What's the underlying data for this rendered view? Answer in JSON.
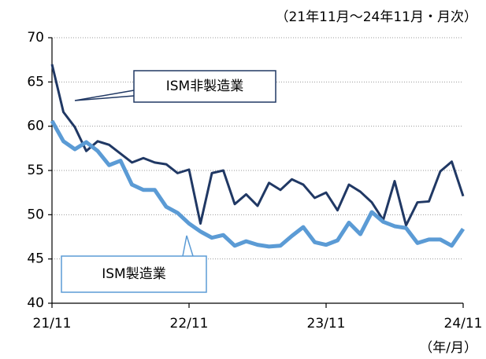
{
  "chart_data": {
    "type": "line",
    "subtitle": "（21年11月～24年11月・月次）",
    "x_unit": "（年/月）",
    "categories": [
      "21/11",
      null,
      null,
      null,
      null,
      null,
      null,
      null,
      null,
      null,
      null,
      null,
      "22/11",
      null,
      null,
      null,
      null,
      null,
      null,
      null,
      null,
      null,
      null,
      null,
      "23/11",
      null,
      null,
      null,
      null,
      null,
      null,
      null,
      null,
      null,
      null,
      null,
      "24/11"
    ],
    "series": [
      {
        "name": "ISM非製造業",
        "color": "#203864",
        "values": [
          67.0,
          61.6,
          59.9,
          57.2,
          58.3,
          57.9,
          56.9,
          55.9,
          56.4,
          55.9,
          55.7,
          54.7,
          55.1,
          49.0,
          54.7,
          55.0,
          51.2,
          52.3,
          51.0,
          53.6,
          52.8,
          54.0,
          53.4,
          51.9,
          52.5,
          50.5,
          53.4,
          52.6,
          51.4,
          49.4,
          53.8,
          48.8,
          51.4,
          51.5,
          54.9,
          56.0,
          52.1
        ]
      },
      {
        "name": "ISM製造業",
        "color": "#5b9bd5",
        "values": [
          60.6,
          58.3,
          57.4,
          58.2,
          57.2,
          55.6,
          56.1,
          53.4,
          52.8,
          52.8,
          50.9,
          50.2,
          49.0,
          48.1,
          47.4,
          47.7,
          46.5,
          47.0,
          46.6,
          46.4,
          46.5,
          47.6,
          48.6,
          46.9,
          46.6,
          47.1,
          49.1,
          47.8,
          50.3,
          49.2,
          48.7,
          48.5,
          46.8,
          47.2,
          47.2,
          46.5,
          48.4
        ]
      }
    ],
    "ylim": [
      40,
      70
    ],
    "yticks": [
      40,
      45,
      50,
      55,
      60,
      65,
      70
    ],
    "grid": true
  }
}
